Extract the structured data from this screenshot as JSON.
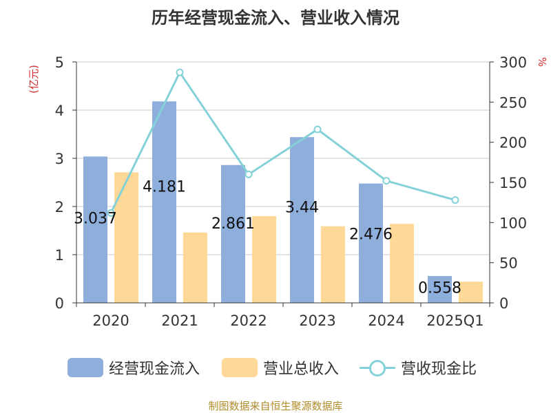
{
  "title": "历年经营现金流入、营业收入情况",
  "source": "制图数据来自恒生聚源数据库",
  "colors": {
    "cash": "#8eaedb",
    "revenue": "#fdd896",
    "ratio": "#84d1d7",
    "axis": "#333333",
    "grid": "#c8c8c8",
    "unit": "#d42a2a"
  },
  "chart_data": {
    "type": "bar",
    "categories": [
      "2020",
      "2021",
      "2022",
      "2023",
      "2024",
      "2025Q1"
    ],
    "y_left": {
      "unit": "(亿元)",
      "min": 0,
      "max": 5,
      "ticks": [
        "0",
        "1",
        "2",
        "3",
        "4",
        "5"
      ]
    },
    "y_right": {
      "unit": "%",
      "min": 0,
      "max": 300,
      "ticks": [
        "0",
        "50",
        "100",
        "150",
        "200",
        "250",
        "300"
      ]
    },
    "grid": true,
    "legend_position": "bottom",
    "series": [
      {
        "name": "经营现金流入",
        "type": "bar",
        "axis": "left",
        "values": [
          3.037,
          4.181,
          2.861,
          3.44,
          2.476,
          0.558
        ],
        "labels": [
          "3.037",
          "4.181",
          "2.861",
          "3.44",
          "2.476",
          "0.558"
        ]
      },
      {
        "name": "营业总收入",
        "type": "bar",
        "axis": "left",
        "values": [
          2.71,
          1.46,
          1.8,
          1.59,
          1.64,
          0.44
        ]
      },
      {
        "name": "营收现金比",
        "type": "line",
        "axis": "right",
        "values": [
          112,
          287,
          160,
          216,
          152,
          128
        ]
      }
    ]
  }
}
